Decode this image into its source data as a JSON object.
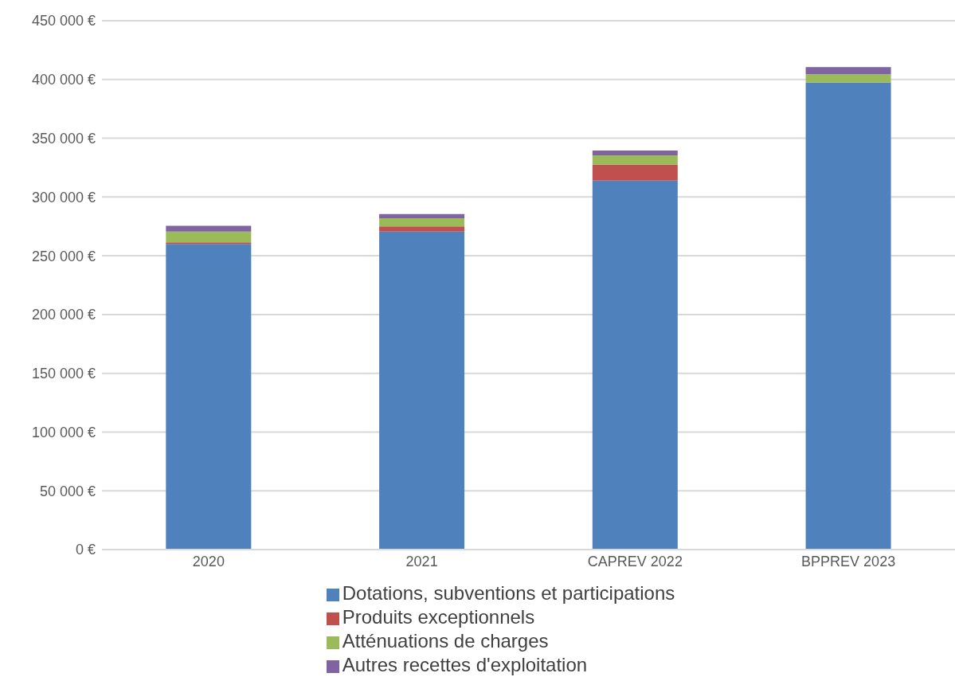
{
  "chart_data": {
    "type": "bar",
    "stacked": true,
    "categories": [
      "2020",
      "2021",
      "CAPREV 2022",
      "BPPREV 2023"
    ],
    "series": [
      {
        "name": "Dotations, subventions et participations",
        "color": "#4f81bd",
        "values": [
          260000,
          270500,
          314000,
          397500
        ]
      },
      {
        "name": "Produits exceptionnels",
        "color": "#c0504d",
        "values": [
          1500,
          4500,
          13500,
          0
        ]
      },
      {
        "name": "Atténuations de charges",
        "color": "#9bbb59",
        "values": [
          9000,
          7000,
          8000,
          7000
        ]
      },
      {
        "name": "Autres recettes d'exploitation",
        "color": "#8064a2",
        "values": [
          5000,
          3500,
          4000,
          6000
        ]
      }
    ],
    "ylim": [
      0,
      450000
    ],
    "yticks": [
      {
        "value": 0,
        "label": "0 €"
      },
      {
        "value": 50000,
        "label": "50 000 €"
      },
      {
        "value": 100000,
        "label": "100 000 €"
      },
      {
        "value": 150000,
        "label": "150 000 €"
      },
      {
        "value": 200000,
        "label": "200 000 €"
      },
      {
        "value": 250000,
        "label": "250 000 €"
      },
      {
        "value": 300000,
        "label": "300 000 €"
      },
      {
        "value": 350000,
        "label": "350 000 €"
      },
      {
        "value": 400000,
        "label": "400 000 €"
      },
      {
        "value": 450000,
        "label": "450 000 €"
      }
    ],
    "grid": "y",
    "legend": "bottom"
  }
}
